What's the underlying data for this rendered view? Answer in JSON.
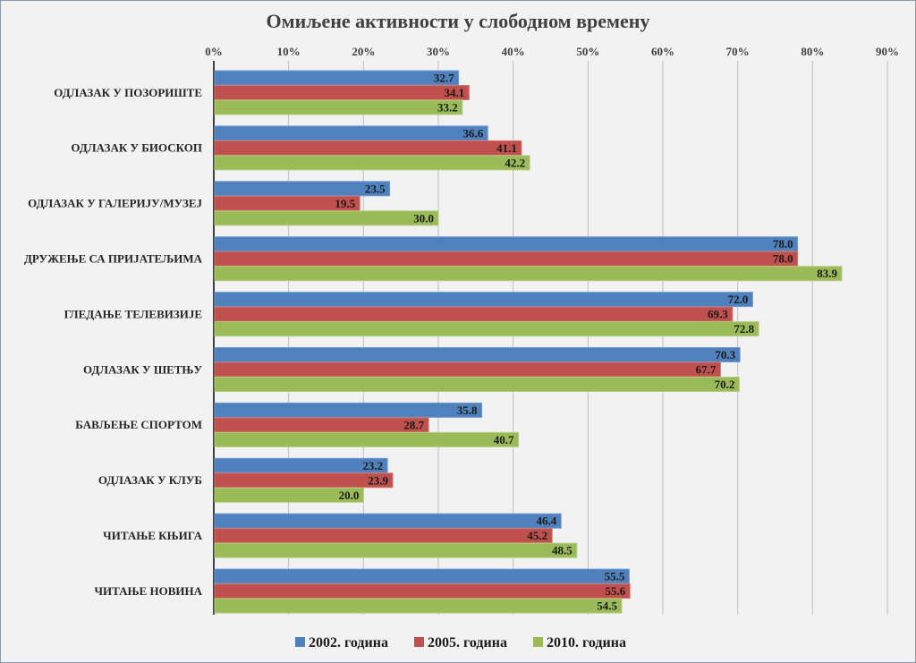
{
  "chart_data": {
    "type": "bar",
    "orientation": "horizontal",
    "title": "Омиљене активности у слободном времену",
    "xlim": [
      0,
      90
    ],
    "x_ticks": [
      "0%",
      "10%",
      "20%",
      "30%",
      "40%",
      "50%",
      "60%",
      "70%",
      "80%",
      "90%"
    ],
    "grid": true,
    "legend_position": "bottom",
    "categories": [
      "ОДЛАЗАК У ПОЗОРИШТЕ",
      "ОДЛАЗАК У БИОСКОП",
      "ОДЛАЗАК У ГАЛЕРИЈУ/МУЗЕЈ",
      "ДРУЖЕЊЕ СА ПРИЈАТЕЉИМА",
      "ГЛЕДАЊЕ ТЕЛЕВИЗИЈЕ",
      "ОДЛАЗАК У ШЕТЊУ",
      "БАВЉЕЊЕ СПОРТОМ",
      "ОДЛАЗАК У КЛУБ",
      "ЧИТАЊЕ КЊИГА",
      "ЧИТАЊЕ НОВИНА"
    ],
    "series": [
      {
        "name": "2002. година",
        "color": "#4f81bd",
        "edge": "#6f9ad3",
        "values": [
          32.7,
          36.6,
          23.5,
          78.0,
          72.0,
          70.3,
          35.8,
          23.2,
          46.4,
          55.5
        ]
      },
      {
        "name": "2005. година",
        "color": "#c0504d",
        "edge": "#d47370",
        "values": [
          34.1,
          41.1,
          19.5,
          78.0,
          69.3,
          67.7,
          28.7,
          23.9,
          45.2,
          55.6
        ]
      },
      {
        "name": "2010. година",
        "color": "#9bbb59",
        "edge": "#b3cd7d",
        "values": [
          33.2,
          42.2,
          30.0,
          83.9,
          72.8,
          70.2,
          40.7,
          20.0,
          48.5,
          54.5
        ]
      }
    ]
  }
}
